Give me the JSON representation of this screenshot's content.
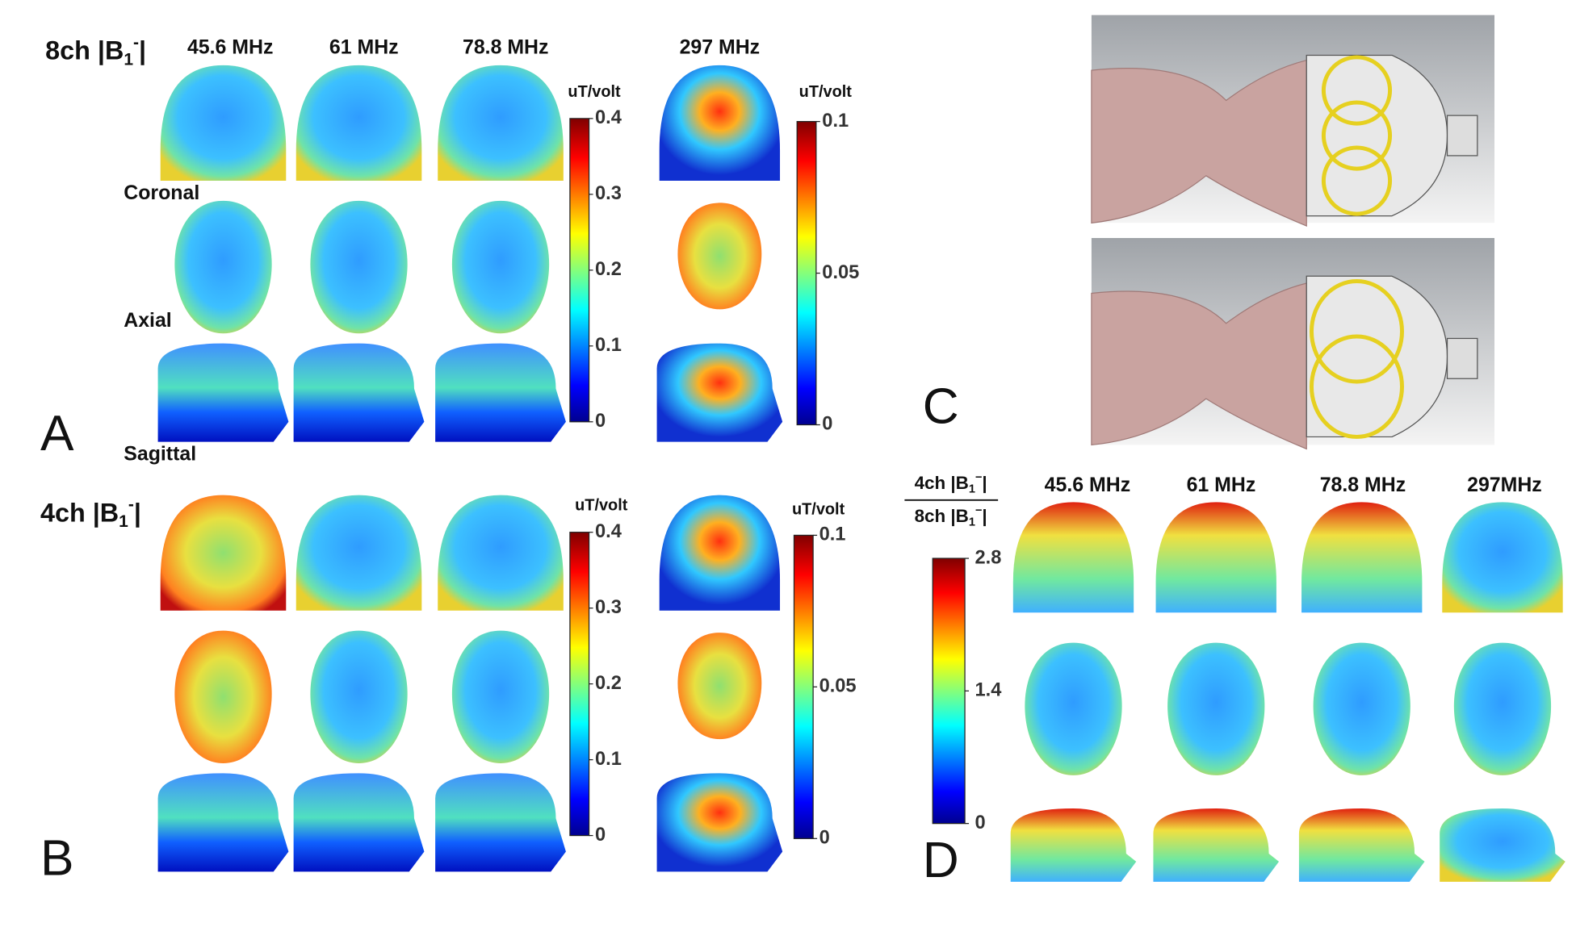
{
  "panels": {
    "A": {
      "label": "A",
      "title": {
        "prefix": "8ch |B",
        "sub": "1",
        "sup": "-",
        "suffix": "|"
      },
      "frequencies": [
        "45.6 MHz",
        "61 MHz",
        "78.8 MHz",
        "297 MHz"
      ],
      "views": [
        "Coronal",
        "Axial",
        "Sagittal"
      ],
      "colorbars": [
        {
          "unit": "uT/volt",
          "lim": [
            0,
            0.4
          ],
          "ticks": [
            0,
            0.1,
            0.2,
            0.3,
            0.4
          ]
        },
        {
          "unit": "uT/volt",
          "lim": [
            0,
            0.1
          ],
          "ticks": [
            0,
            0.05,
            0.1
          ]
        }
      ]
    },
    "B": {
      "label": "B",
      "title": {
        "prefix": "4ch |B",
        "sub": "1",
        "sup": "-",
        "suffix": "|"
      },
      "colorbars": [
        {
          "unit": "uT/volt",
          "lim": [
            0,
            0.4
          ],
          "ticks": [
            0,
            0.1,
            0.2,
            0.3,
            0.4
          ]
        },
        {
          "unit": "uT/volt",
          "lim": [
            0,
            0.1
          ],
          "ticks": [
            0,
            0.05,
            0.1
          ]
        }
      ]
    },
    "C": {
      "label": "C"
    },
    "D": {
      "label": "D",
      "ratio": {
        "numerator": {
          "prefix": "4ch |B",
          "sub": "1",
          "sup": "−",
          "suffix": "|"
        },
        "denominator": {
          "prefix": "8ch |B",
          "sub": "1",
          "sup": "−",
          "suffix": "|"
        }
      },
      "frequencies": [
        "45.6 MHz",
        "61 MHz",
        "78.8 MHz",
        "297MHz"
      ],
      "colorbar": {
        "lim": [
          0,
          2.8
        ],
        "ticks": [
          0,
          1.4,
          2.8
        ]
      }
    }
  }
}
